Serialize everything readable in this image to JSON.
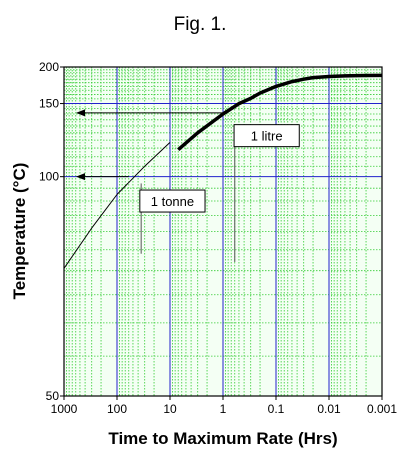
{
  "figure": {
    "title": "Fig. 1."
  },
  "chart_data": {
    "type": "line",
    "title": "Fig. 1.",
    "xlabel": "Time to Maximum Rate (Hrs)",
    "ylabel": "Temperature (°C)",
    "x_scale": "log-reversed",
    "y_scale": "reciprocal",
    "xlim": [
      1000,
      0.001
    ],
    "ylim": [
      50,
      200
    ],
    "x_ticks": [
      1000,
      100,
      10,
      1,
      0.1,
      0.01,
      0.001
    ],
    "x_tick_labels": [
      "1000",
      "100",
      "10",
      "1",
      "0.1",
      "0.01",
      "0.001"
    ],
    "y_ticks": [
      50,
      100,
      150,
      200
    ],
    "y_tick_labels": [
      "50",
      "100",
      "150",
      "200"
    ],
    "grid": true,
    "colors": {
      "major_grid": "#2222cc",
      "minor_grid": "#33cc33",
      "curve": "#000000",
      "background": "#f4fff4"
    },
    "series": [
      {
        "style": "thin",
        "x": [
          1000,
          300,
          100,
          30,
          10
        ],
        "y": [
          70.5,
          81,
          92.5,
          105,
          118.5
        ]
      },
      {
        "style": "thick",
        "x": [
          7,
          3,
          1,
          0.5,
          0.3,
          0.2,
          0.1,
          0.05,
          0.03,
          0.02,
          0.01,
          0.005,
          0.003,
          0.002,
          0.001
        ],
        "y": [
          114,
          125,
          140,
          150,
          155.5,
          161.5,
          170,
          176.5,
          180,
          182.3,
          184,
          185,
          185.5,
          185.6,
          185.7
        ]
      }
    ],
    "arrows": [
      {
        "from": [
          1,
          141
        ],
        "to": [
          1000,
          141
        ]
      },
      {
        "from": [
          60,
          100
        ],
        "to": [
          1000,
          100
        ]
      }
    ],
    "vertical_markers": [
      {
        "x": 35,
        "y": [
          74,
          97
        ]
      },
      {
        "x": 0.6,
        "y": [
          72,
          123
        ]
      }
    ],
    "annotations": [
      {
        "text": "1 litre",
        "x": 0.15,
        "y": 123
      },
      {
        "text": "1 tonne",
        "x": 9,
        "y": 90
      }
    ]
  }
}
